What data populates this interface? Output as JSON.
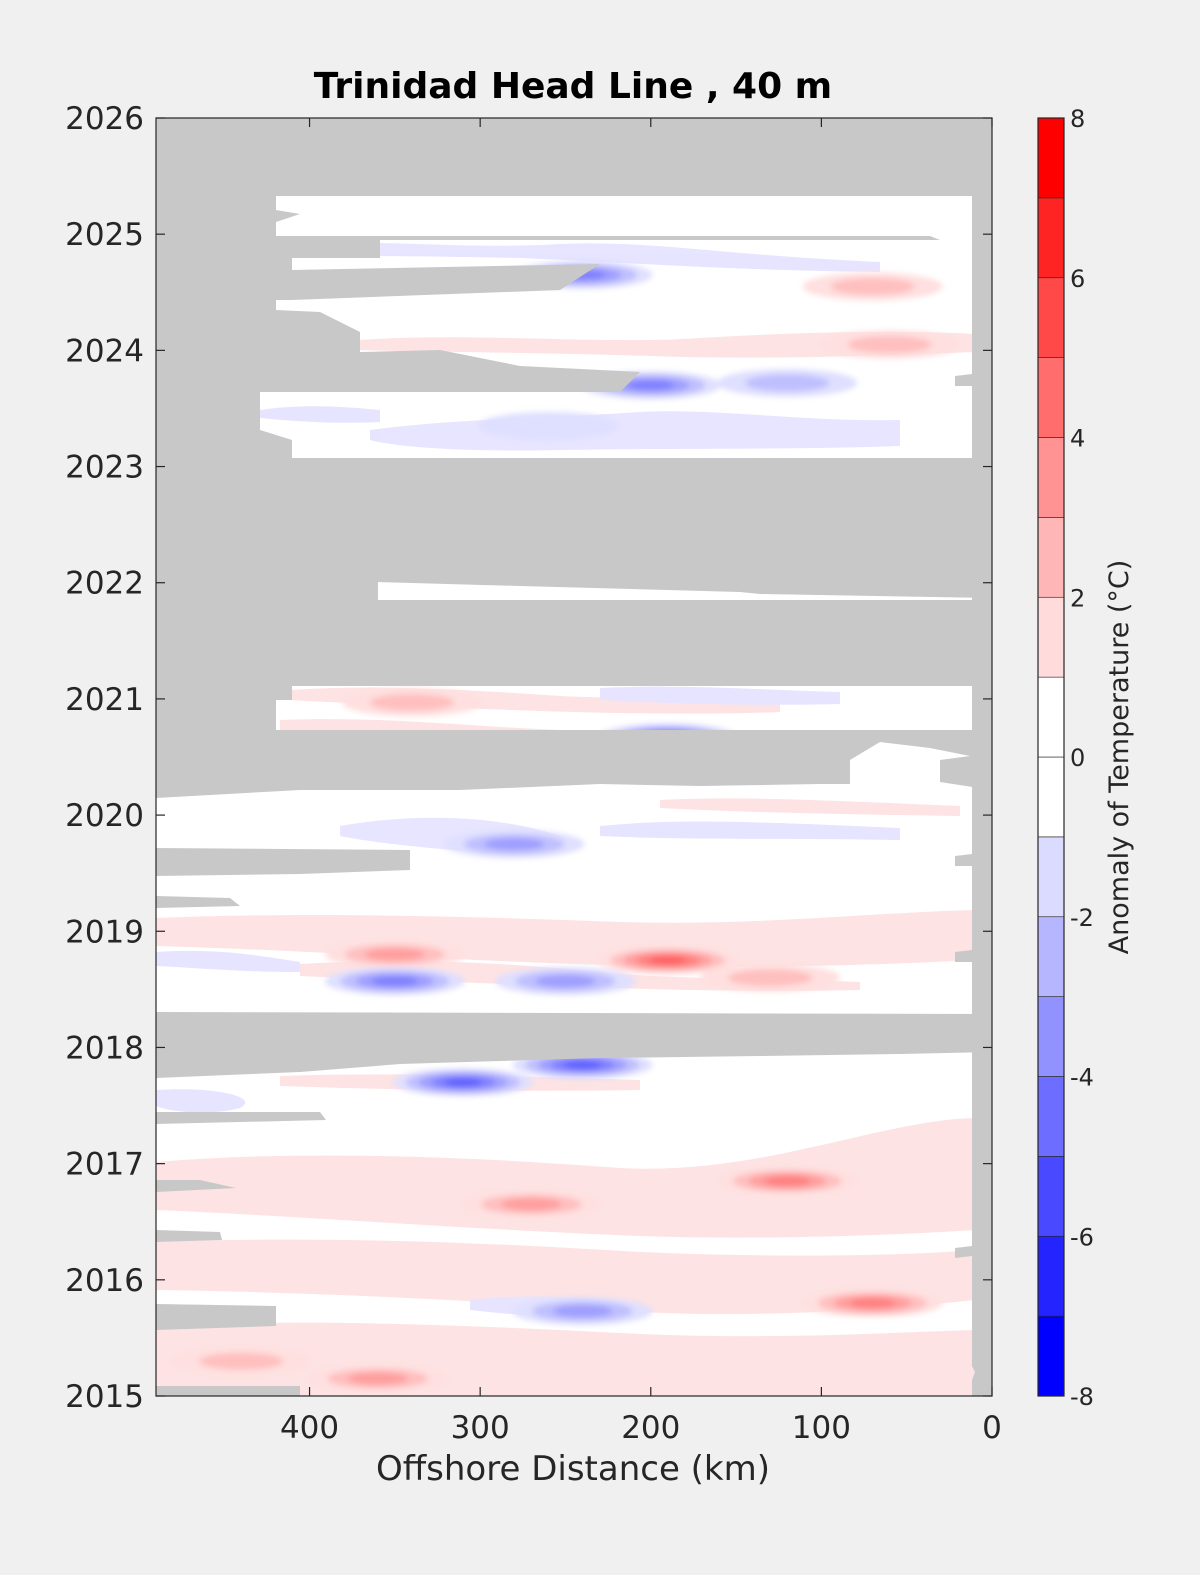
{
  "chart_data": {
    "type": "heatmap",
    "title": "Trinidad Head Line , 40 m",
    "xlabel": "Offshore Distance (km)",
    "ylabel": "",
    "colorbar_label": "Anomaly of Temperature (°C)",
    "x_ticks": [
      "400",
      "300",
      "200",
      "100",
      "0"
    ],
    "y_ticks": [
      "2026",
      "2025",
      "2024",
      "2023",
      "2022",
      "2021",
      "2020",
      "2019",
      "2018",
      "2017",
      "2016",
      "2015"
    ],
    "colorbar_ticks": [
      "8",
      "6",
      "4",
      "2",
      "0",
      "-2",
      "-4",
      "-6",
      "-8"
    ],
    "xlim": [
      490,
      0
    ],
    "x_reversed": true,
    "ylim": [
      2015,
      2026
    ],
    "clim": [
      -8,
      8
    ],
    "contour_interval": 1,
    "missing_data_color": "#c8c8c8",
    "colormap": {
      "negative_end": "#0000ff",
      "zero": "#ffffff",
      "positive_end": "#ff0000"
    },
    "gap_periods": [
      {
        "from": 2025.35,
        "to": 2026.0
      },
      {
        "from": 2022.1,
        "to": 2023.0
      },
      {
        "from": 2021.1,
        "to": 2021.85
      },
      {
        "from": 2020.2,
        "to": 2020.75
      },
      {
        "from": 2017.75,
        "to": 2018.3
      }
    ],
    "anomaly_features": [
      {
        "x": 240,
        "y": 2024.65,
        "value": -4
      },
      {
        "x": 200,
        "y": 2023.7,
        "value": -4
      },
      {
        "x": 120,
        "y": 2023.72,
        "value": -2
      },
      {
        "x": 260,
        "y": 2023.35,
        "value": -1
      },
      {
        "x": 60,
        "y": 2024.05,
        "value": 2
      },
      {
        "x": 70,
        "y": 2024.55,
        "value": 2
      },
      {
        "x": 190,
        "y": 2020.67,
        "value": -5
      },
      {
        "x": 340,
        "y": 2020.97,
        "value": 2
      },
      {
        "x": 280,
        "y": 2019.75,
        "value": -3
      },
      {
        "x": 350,
        "y": 2018.8,
        "value": 3
      },
      {
        "x": 190,
        "y": 2018.75,
        "value": 5
      },
      {
        "x": 350,
        "y": 2018.57,
        "value": -4
      },
      {
        "x": 250,
        "y": 2018.57,
        "value": -3
      },
      {
        "x": 130,
        "y": 2018.6,
        "value": 2
      },
      {
        "x": 310,
        "y": 2017.7,
        "value": -5
      },
      {
        "x": 240,
        "y": 2017.85,
        "value": -5
      },
      {
        "x": 120,
        "y": 2016.85,
        "value": 4
      },
      {
        "x": 270,
        "y": 2016.65,
        "value": 3
      },
      {
        "x": 70,
        "y": 2015.8,
        "value": 4
      },
      {
        "x": 240,
        "y": 2015.73,
        "value": -3
      },
      {
        "x": 360,
        "y": 2015.15,
        "value": 3
      },
      {
        "x": 440,
        "y": 2015.3,
        "value": 2
      }
    ]
  }
}
